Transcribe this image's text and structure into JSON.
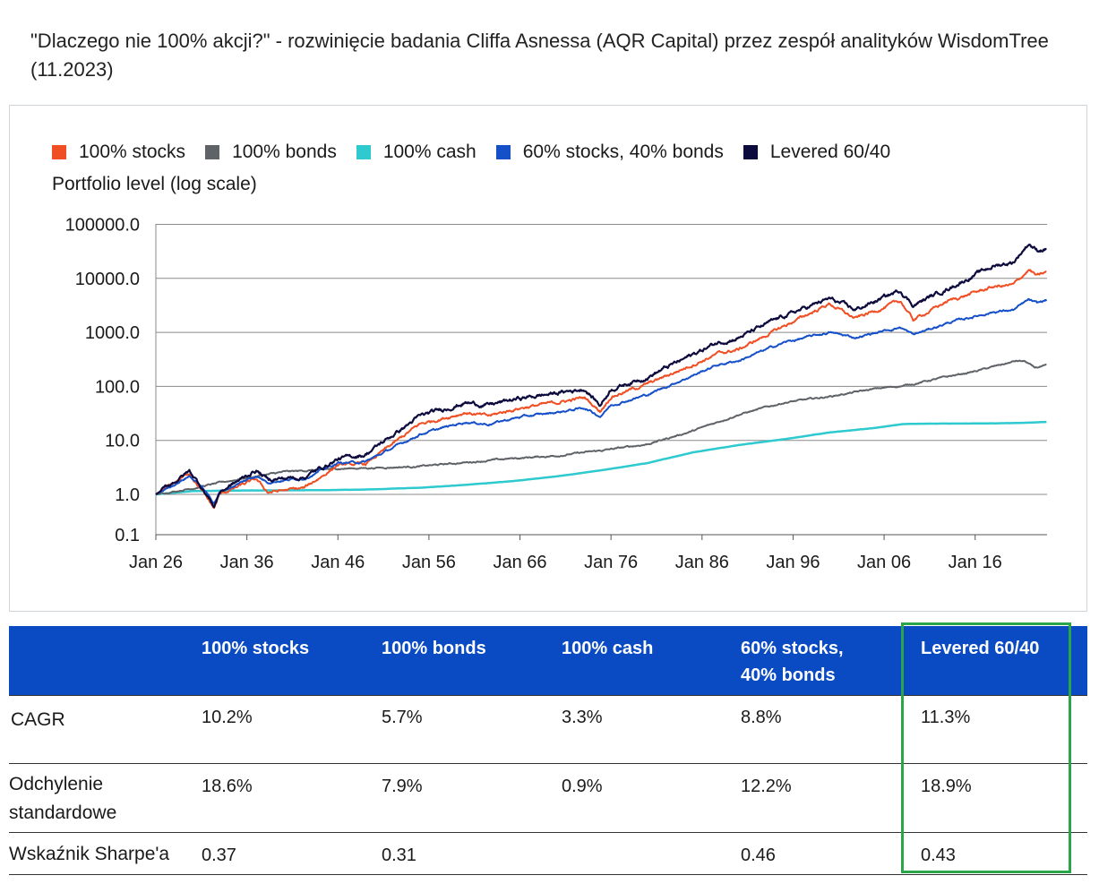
{
  "title": "\"Dlaczego nie 100% akcji?\" - rozwinięcie badania Cliffa Asnessa (AQR Capital) przez zespół analityków WisdomTree (11.2023)",
  "chart_data": {
    "type": "line",
    "ylabel": "Portfolio level (log scale)",
    "yscale": "log",
    "ylim": [
      0.1,
      100000
    ],
    "yticks": [
      "100000.0",
      "10000.0",
      "1000.0",
      "100.0",
      "10.0",
      "1.0",
      "0.1"
    ],
    "xlim": [
      1926,
      2023.9
    ],
    "xticks": [
      "Jan 26",
      "Jan 36",
      "Jan 46",
      "Jan 56",
      "Jan 66",
      "Jan 76",
      "Jan 86",
      "Jan 96",
      "Jan 06",
      "Jan 16"
    ],
    "grid": true,
    "legend_position": "top",
    "series": [
      {
        "name": "100% stocks",
        "color": "#f04e23",
        "x": [
          1926,
          1929.7,
          1931,
          1932.4,
          1933,
          1937,
          1938.3,
          1942.3,
          1946,
          1949,
          1955,
          1960,
          1962.5,
          1966,
          1970,
          1973.1,
          1974.8,
          1976,
          1980,
          1987.7,
          1990,
          1995,
          2000,
          2002.8,
          2007.8,
          2009.2,
          2013,
          2018,
          2020.2,
          2021.9,
          2022.8,
          2023.9
        ],
        "y": [
          1.0,
          2.5,
          1.2,
          0.55,
          1.0,
          1.9,
          1.1,
          1.3,
          3.5,
          3.6,
          20,
          33,
          28,
          40,
          50,
          62,
          35,
          65,
          110,
          400,
          480,
          1300,
          3400,
          1800,
          3800,
          1700,
          3800,
          7000,
          7500,
          14500,
          11000,
          13000
        ]
      },
      {
        "name": "100% bonds",
        "color": "#5f6368",
        "x": [
          1926,
          1930,
          1935,
          1940,
          1946,
          1950,
          1955,
          1960,
          1965,
          1970,
          1975,
          1980,
          1985,
          1990,
          1995,
          2000,
          2005,
          2008.5,
          2012,
          2016,
          2020.5,
          2021.5,
          2022.5,
          2023.9
        ],
        "y": [
          1.0,
          1.3,
          1.9,
          2.6,
          3.0,
          3.1,
          3.3,
          3.9,
          4.6,
          5.2,
          6.5,
          8.5,
          15,
          30,
          50,
          65,
          90,
          105,
          140,
          190,
          295,
          290,
          220,
          240
        ]
      },
      {
        "name": "100% cash",
        "color": "#2ecad0",
        "x": [
          1926,
          1930,
          1935,
          1940,
          1945,
          1950,
          1955,
          1960,
          1965,
          1970,
          1975,
          1980,
          1985,
          1990,
          1995,
          2000,
          2005,
          2008,
          2010,
          2015,
          2020,
          2022,
          2023.9
        ],
        "y": [
          1.0,
          1.15,
          1.18,
          1.19,
          1.2,
          1.24,
          1.33,
          1.5,
          1.75,
          2.15,
          2.8,
          3.8,
          6.0,
          8.2,
          10.5,
          14,
          17,
          20,
          20.4,
          20.5,
          20.9,
          21.3,
          22
        ]
      },
      {
        "name": "60% stocks, 40% bonds",
        "color": "#1550c8",
        "x": [
          1926,
          1929.7,
          1931,
          1932.4,
          1933,
          1937,
          1938.3,
          1942.3,
          1946,
          1949,
          1955,
          1960,
          1962.5,
          1966,
          1970,
          1973.1,
          1974.8,
          1976,
          1980,
          1987.7,
          1990,
          1995,
          2000,
          2002.8,
          2007.8,
          2009.2,
          2013,
          2018,
          2020.2,
          2021.9,
          2022.8,
          2023.9
        ],
        "y": [
          1.0,
          2.2,
          1.4,
          0.7,
          1.1,
          2.2,
          1.7,
          2.0,
          3.8,
          4.0,
          13,
          22,
          20,
          27,
          33,
          40,
          28,
          45,
          70,
          250,
          300,
          650,
          1000,
          800,
          1250,
          900,
          1500,
          2400,
          2600,
          4000,
          3400,
          4000
        ]
      },
      {
        "name": "Levered 60/40",
        "color": "#0d0b3d",
        "x": [
          1926,
          1929.7,
          1931,
          1932.4,
          1933,
          1937,
          1938.3,
          1942.3,
          1946,
          1949,
          1955,
          1960,
          1962.5,
          1966,
          1970,
          1973.1,
          1974.8,
          1976,
          1980,
          1987.7,
          1990,
          1995,
          2000,
          2002.8,
          2007.8,
          2009.2,
          2013,
          2018,
          2020.2,
          2021.9,
          2022.8,
          2023.9
        ],
        "y": [
          1.0,
          2.7,
          1.4,
          0.6,
          1.1,
          2.8,
          1.9,
          2.1,
          4.5,
          5.5,
          28,
          50,
          45,
          60,
          75,
          90,
          45,
          90,
          150,
          650,
          800,
          2000,
          4200,
          2600,
          6000,
          3200,
          6500,
          17000,
          20000,
          45000,
          33000,
          36000
        ]
      }
    ]
  },
  "table": {
    "headers": [
      "",
      "100% stocks",
      "100% bonds",
      "100% cash",
      "60% stocks, 40% bonds",
      "Levered 60/40"
    ],
    "header_lines": {
      "stocks": "100% stocks",
      "bonds": "100% bonds",
      "cash": "100% cash",
      "sixty_line1": "60% stocks,",
      "sixty_line2": "40% bonds",
      "levered": "Levered 60/40"
    },
    "rows": [
      {
        "label_line1": "CAGR",
        "label_line2": "",
        "values": [
          "10.2%",
          "5.7%",
          "3.3%",
          "8.8%",
          "11.3%"
        ]
      },
      {
        "label_line1": "Odchylenie",
        "label_line2": "standardowe",
        "values": [
          "18.6%",
          "7.9%",
          "0.9%",
          "12.2%",
          "18.9%"
        ]
      },
      {
        "label_line1": "Wskaźnik Sharpe'a",
        "label_line2": "",
        "values": [
          "0.37",
          "0.31",
          "",
          "0.46",
          "0.43"
        ]
      }
    ],
    "header_bg": "#0a4bc4",
    "highlight_color": "#2aa54a"
  }
}
